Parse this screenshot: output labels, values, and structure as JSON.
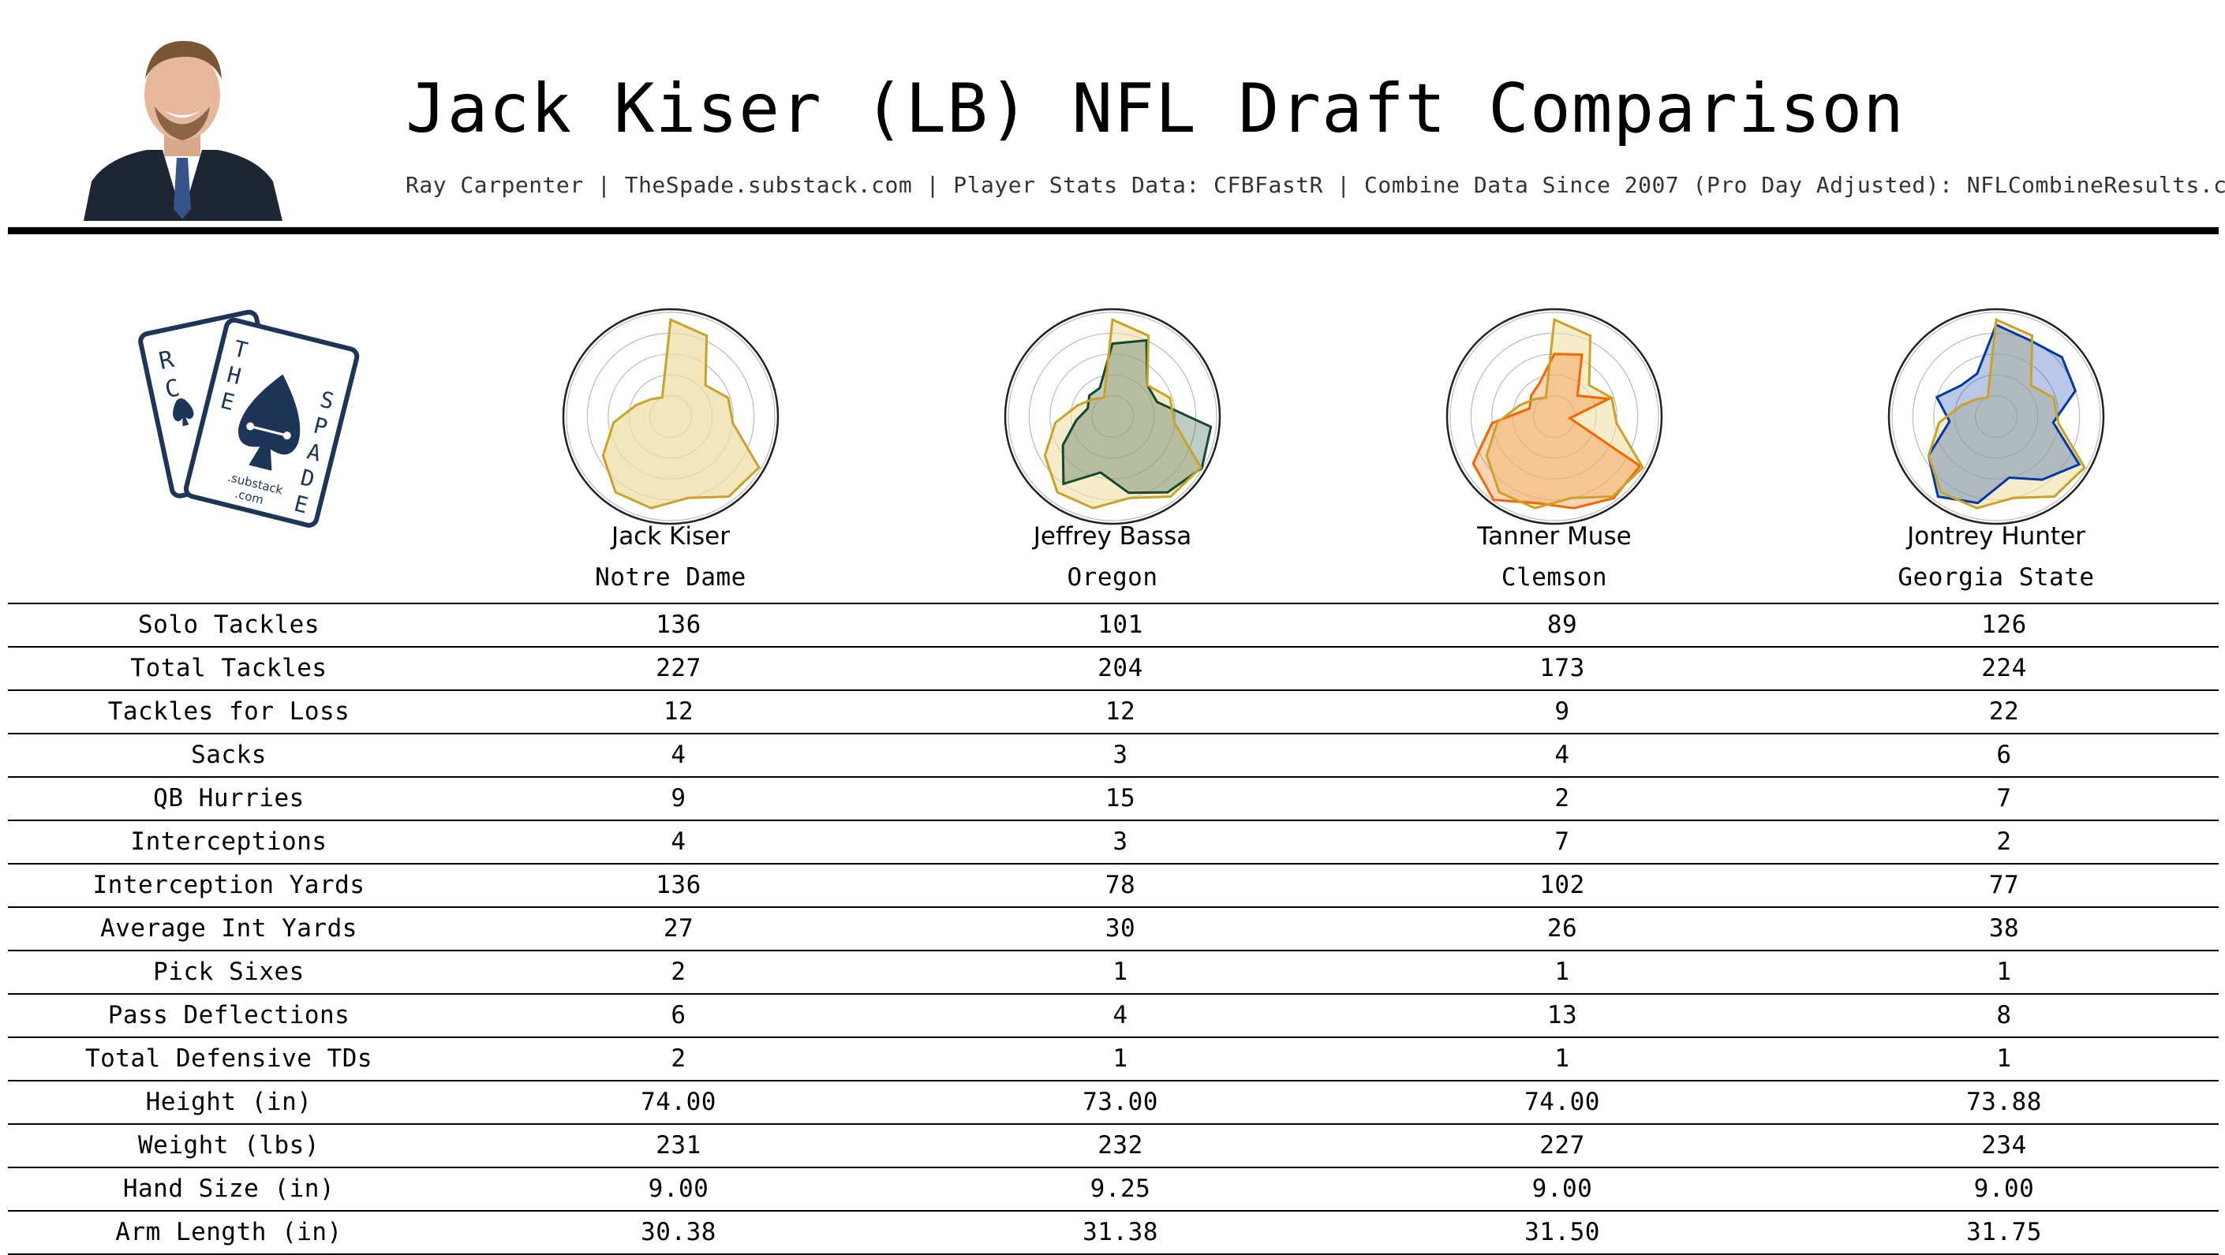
{
  "header": {
    "title": "Jack Kiser (LB) NFL Draft Comparison",
    "subtitle": "Ray Carpenter | TheSpade.substack.com | Player Stats Data: CFBFastR | Combine Data Since 2007 (Pro Day Adjusted): NFLCombineResults.com"
  },
  "logo": {
    "card_left_letters": [
      "R",
      "C"
    ],
    "card_right_letters": [
      "T",
      "H",
      "E",
      "S",
      "P",
      "A",
      "D",
      "E"
    ],
    "substack_text": ".substack",
    "com_text": ".com"
  },
  "colors": {
    "base_outline": "#c9a227",
    "base_fill": "#eedfa6",
    "Jeffrey Bassa": "#154733",
    "Tanner Muse": "#f56600",
    "Jontrey Hunter": "#0039a6",
    "grid": "#bbbbbb"
  },
  "players": [
    {
      "name": "Jack Kiser",
      "school": "Notre Dame"
    },
    {
      "name": "Jeffrey Bassa",
      "school": "Oregon"
    },
    {
      "name": "Tanner Muse",
      "school": "Clemson"
    },
    {
      "name": "Jontrey Hunter",
      "school": "Georgia State"
    }
  ],
  "table": {
    "rows": [
      {
        "label": "Solo Tackles",
        "values": [
          "136",
          "101",
          "89",
          "126"
        ]
      },
      {
        "label": "Total Tackles",
        "values": [
          "227",
          "204",
          "173",
          "224"
        ]
      },
      {
        "label": "Tackles for Loss",
        "values": [
          "12",
          "12",
          "9",
          "22"
        ]
      },
      {
        "label": "Sacks",
        "values": [
          "4",
          "3",
          "4",
          "6"
        ]
      },
      {
        "label": "QB Hurries",
        "values": [
          "9",
          "15",
          "2",
          "7"
        ]
      },
      {
        "label": "Interceptions",
        "values": [
          "4",
          "3",
          "7",
          "2"
        ]
      },
      {
        "label": "Interception Yards",
        "values": [
          "136",
          "78",
          "102",
          "77"
        ]
      },
      {
        "label": "Average Int Yards",
        "values": [
          "27",
          "30",
          "26",
          "38"
        ]
      },
      {
        "label": "Pick Sixes",
        "values": [
          "2",
          "1",
          "1",
          "1"
        ]
      },
      {
        "label": "Pass Deflections",
        "values": [
          "6",
          "4",
          "13",
          "8"
        ]
      },
      {
        "label": "Total Defensive TDs",
        "values": [
          "2",
          "1",
          "1",
          "1"
        ]
      },
      {
        "label": "Height (in)",
        "values": [
          "74.00",
          "73.00",
          "74.00",
          "73.88"
        ]
      },
      {
        "label": "Weight (lbs)",
        "values": [
          "231",
          "232",
          "227",
          "234"
        ]
      },
      {
        "label": "Hand Size (in)",
        "values": [
          "9.00",
          "9.25",
          "9.00",
          "9.00"
        ]
      },
      {
        "label": "Arm Length (in)",
        "values": [
          "30.38",
          "31.38",
          "31.50",
          "31.75"
        ]
      }
    ]
  },
  "chart_data": {
    "type": "radar",
    "title": "",
    "axes_count": 15,
    "rlim": [
      0,
      1
    ],
    "grid": true,
    "baseline": "Jack Kiser",
    "series": [
      {
        "name": "Jack Kiser",
        "values": [
          0.93,
          0.85,
          0.45,
          0.58,
          0.6,
          0.98,
          0.95,
          0.8,
          0.9,
          0.9,
          0.75,
          0.55,
          0.35,
          0.25,
          0.2
        ]
      },
      {
        "name": "Jeffrey Bassa",
        "values": [
          0.7,
          0.8,
          0.45,
          0.45,
          0.95,
          0.99,
          0.9,
          0.75,
          0.55,
          0.8,
          0.55,
          0.35,
          0.25,
          0.3,
          0.3
        ]
      },
      {
        "name": "Tanner Muse",
        "values": [
          0.6,
          0.65,
          0.3,
          0.55,
          0.15,
          0.95,
          0.97,
          0.9,
          0.85,
          0.99,
          0.9,
          0.6,
          0.25,
          0.3,
          0.35
        ]
      },
      {
        "name": "Jontrey Hunter",
        "values": [
          0.88,
          0.8,
          0.85,
          0.8,
          0.55,
          0.92,
          0.75,
          0.6,
          0.85,
          0.95,
          0.75,
          0.45,
          0.6,
          0.45,
          0.45
        ]
      }
    ]
  }
}
